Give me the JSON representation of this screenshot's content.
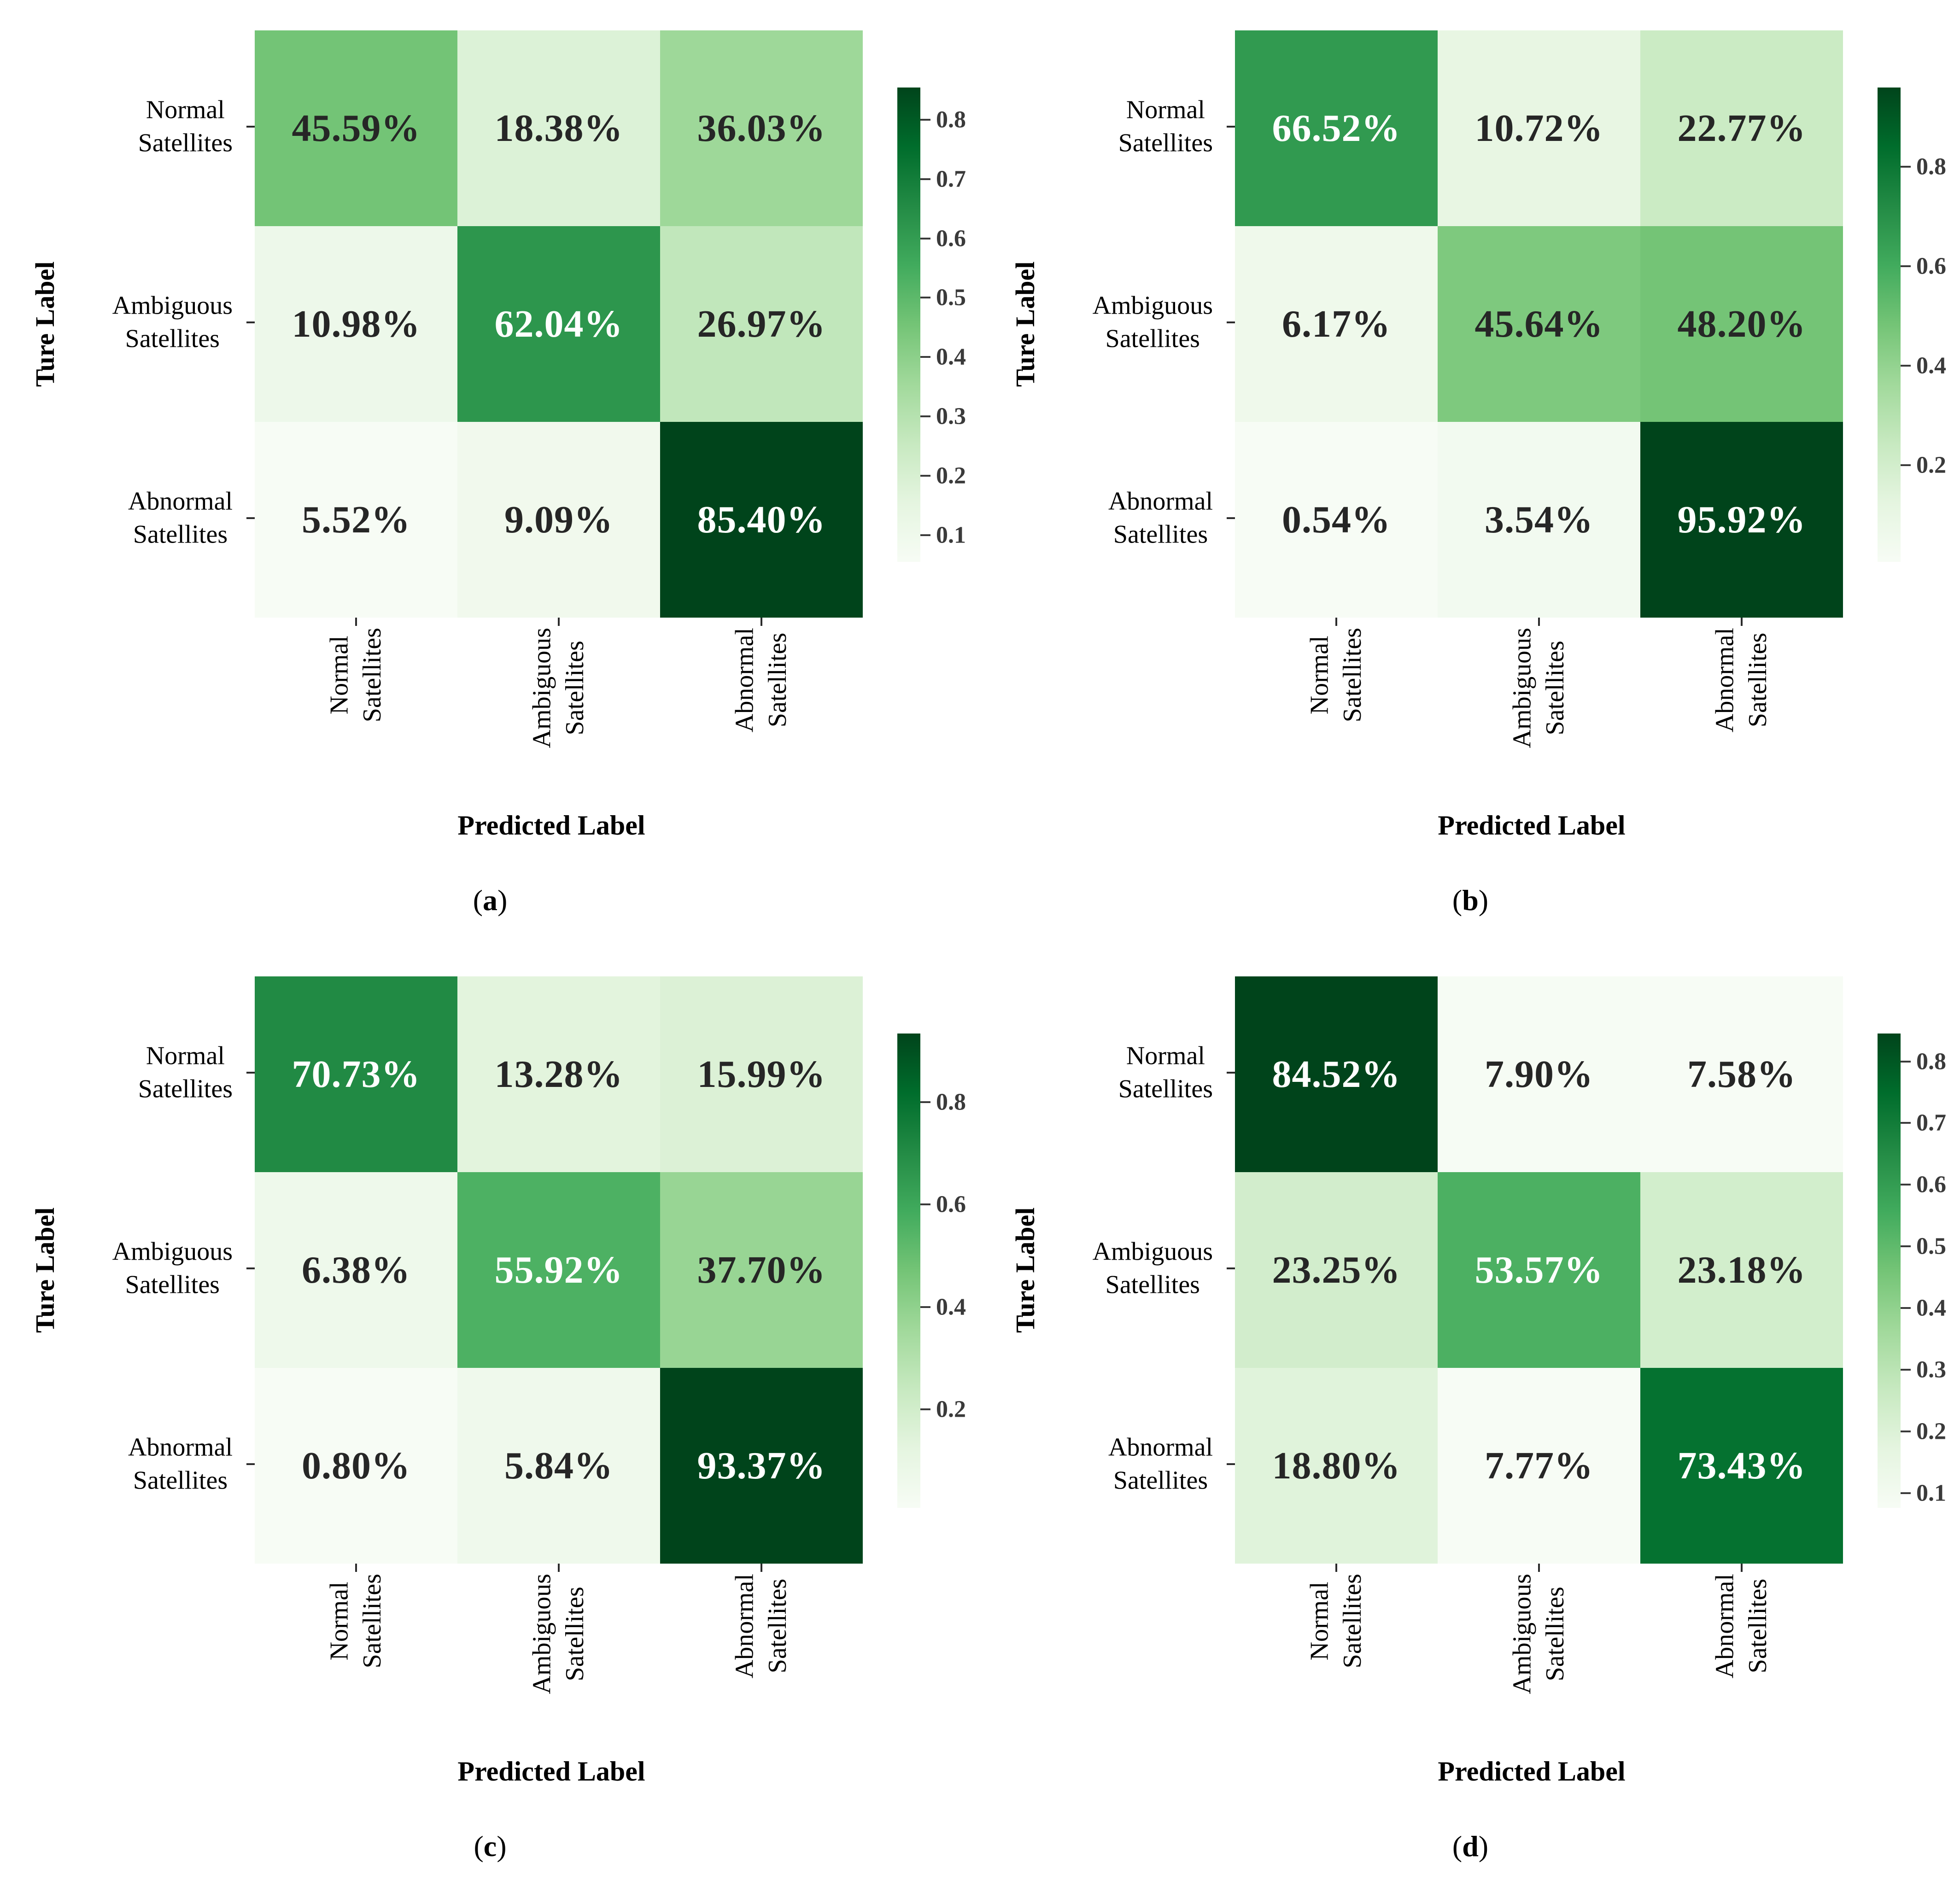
{
  "figure": {
    "caption_open": "(",
    "caption_close": ")",
    "category_lines": [
      [
        "Normal",
        "Satellites"
      ],
      [
        "Ambiguous",
        "Satellites"
      ],
      [
        "Abnormal",
        "Satellites"
      ]
    ],
    "colormap_name": "Greens",
    "colormap_stops": [
      "#f7fcf5",
      "#e5f5e0",
      "#c7e9c0",
      "#a1d99b",
      "#74c476",
      "#41ab5d",
      "#238b45",
      "#006d2c",
      "#00441b"
    ],
    "annotation_dark_text": "#262626",
    "annotation_light_text": "#ffffff",
    "axis_tick_color": "#2b2b2b",
    "background": "#ffffff"
  },
  "chart_data": [
    {
      "type": "heatmap",
      "caption_letter": "a",
      "xlabel": "Predicted Label",
      "ylabel": "Ture Label",
      "x_categories": [
        "Normal Satellites",
        "Ambiguous Satellites",
        "Abnormal Satellites"
      ],
      "y_categories": [
        "Normal Satellites",
        "Ambiguous Satellites",
        "Abnormal Satellites"
      ],
      "values_percent": [
        [
          45.59,
          18.38,
          36.03
        ],
        [
          10.98,
          62.04,
          26.97
        ],
        [
          5.52,
          9.09,
          85.4
        ]
      ],
      "cell_labels": [
        [
          "45.59%",
          "18.38%",
          "36.03%"
        ],
        [
          "10.98%",
          "62.04%",
          "26.97%"
        ],
        [
          "5.52%",
          "9.09%",
          "85.40%"
        ]
      ],
      "colorbar_ticks": [
        "0.8",
        "0.7",
        "0.6",
        "0.5",
        "0.4",
        "0.3",
        "0.2",
        "0.1"
      ],
      "colormap": "Greens",
      "colorbar_position": "right"
    },
    {
      "type": "heatmap",
      "caption_letter": "b",
      "xlabel": "Predicted Label",
      "ylabel": "Ture Label",
      "x_categories": [
        "Normal Satellites",
        "Ambiguous Satellites",
        "Abnormal Satellites"
      ],
      "y_categories": [
        "Normal Satellites",
        "Ambiguous Satellites",
        "Abnormal Satellites"
      ],
      "values_percent": [
        [
          66.52,
          10.72,
          22.77
        ],
        [
          6.17,
          45.64,
          48.2
        ],
        [
          0.54,
          3.54,
          95.92
        ]
      ],
      "cell_labels": [
        [
          "66.52%",
          "10.72%",
          "22.77%"
        ],
        [
          "6.17%",
          "45.64%",
          "48.20%"
        ],
        [
          "0.54%",
          "3.54%",
          "95.92%"
        ]
      ],
      "colorbar_ticks": [
        "0.8",
        "0.6",
        "0.4",
        "0.2"
      ],
      "colormap": "Greens",
      "colorbar_position": "right"
    },
    {
      "type": "heatmap",
      "caption_letter": "c",
      "xlabel": "Predicted Label",
      "ylabel": "Ture Label",
      "x_categories": [
        "Normal Satellites",
        "Ambiguous Satellites",
        "Abnormal Satellites"
      ],
      "y_categories": [
        "Normal Satellites",
        "Ambiguous Satellites",
        "Abnormal Satellites"
      ],
      "values_percent": [
        [
          70.73,
          13.28,
          15.99
        ],
        [
          6.38,
          55.92,
          37.7
        ],
        [
          0.8,
          5.84,
          93.37
        ]
      ],
      "cell_labels": [
        [
          "70.73%",
          "13.28%",
          "15.99%"
        ],
        [
          "6.38%",
          "55.92%",
          "37.70%"
        ],
        [
          "0.80%",
          "5.84%",
          "93.37%"
        ]
      ],
      "colorbar_ticks": [
        "0.8",
        "0.6",
        "0.4",
        "0.2"
      ],
      "colormap": "Greens",
      "colorbar_position": "right"
    },
    {
      "type": "heatmap",
      "caption_letter": "d",
      "xlabel": "Predicted Label",
      "ylabel": "Ture Label",
      "x_categories": [
        "Normal Satellites",
        "Ambiguous Satellites",
        "Abnormal Satellites"
      ],
      "y_categories": [
        "Normal Satellites",
        "Ambiguous Satellites",
        "Abnormal Satellites"
      ],
      "values_percent": [
        [
          84.52,
          7.9,
          7.58
        ],
        [
          23.25,
          53.57,
          23.18
        ],
        [
          18.8,
          7.77,
          73.43
        ]
      ],
      "cell_labels": [
        [
          "84.52%",
          "7.90%",
          "7.58%"
        ],
        [
          "23.25%",
          "53.57%",
          "23.18%"
        ],
        [
          "18.80%",
          "7.77%",
          "73.43%"
        ]
      ],
      "colorbar_ticks": [
        "0.8",
        "0.7",
        "0.6",
        "0.5",
        "0.4",
        "0.3",
        "0.2",
        "0.1"
      ],
      "colormap": "Greens",
      "colorbar_position": "right"
    }
  ]
}
